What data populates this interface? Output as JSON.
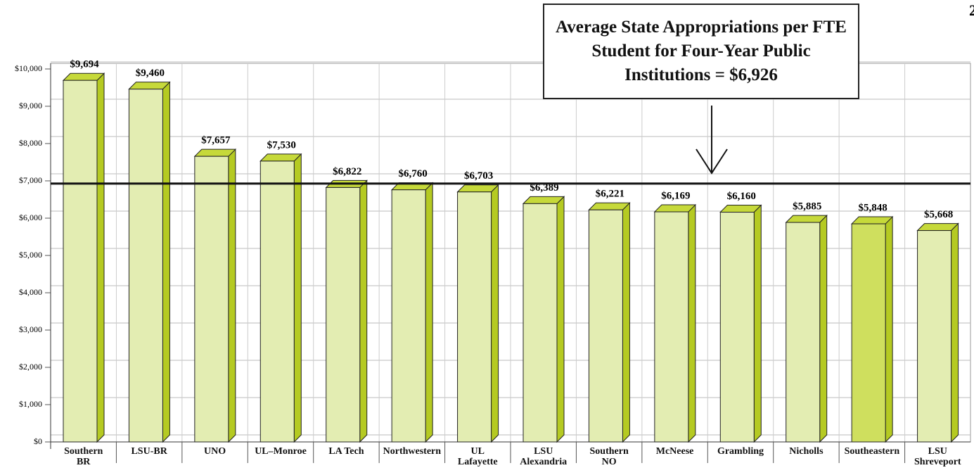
{
  "page_number": "2",
  "chart_data": {
    "type": "bar3d",
    "annotation": "Average State Appropriations per FTE Student for Four-Year Public Institutions = $6,926",
    "reference_value": 6926,
    "categories": [
      "Southern\nBR",
      "LSU-BR",
      "UNO",
      "UL–Monroe",
      "LA Tech",
      "Northwestern",
      "UL\nLafayette",
      "LSU\nAlexandria",
      "Southern\nNO",
      "McNeese",
      "Grambling",
      "Nicholls",
      "Southeastern",
      "LSU\nShreveport"
    ],
    "values": [
      9694,
      9460,
      7657,
      7530,
      6822,
      6760,
      6703,
      6389,
      6221,
      6169,
      6160,
      5885,
      5848,
      5668
    ],
    "value_labels": [
      "$9,694",
      "$9,460",
      "$7,657",
      "$7,530",
      "$6,822",
      "$6,760",
      "$6,703",
      "$6,389",
      "$6,221",
      "$6,169",
      "$6,160",
      "$5,885",
      "$5,848",
      "$5,668"
    ],
    "color": "#e3edb2",
    "highlight_index": 12,
    "highlight_color": "#cfdf5e",
    "ylim": [
      0,
      10000
    ],
    "yticks": [
      {
        "value": 0,
        "label": "$0"
      },
      {
        "value": 1000,
        "label": "$1,000"
      },
      {
        "value": 2000,
        "label": "$2,000"
      },
      {
        "value": 3000,
        "label": "$3,000"
      },
      {
        "value": 4000,
        "label": "$4,000"
      },
      {
        "value": 5000,
        "label": "$5,000"
      },
      {
        "value": 6000,
        "label": "$6,000"
      },
      {
        "value": 7000,
        "label": "$7,000"
      },
      {
        "value": 8000,
        "label": "$8,000"
      },
      {
        "value": 9000,
        "label": "$9,000"
      },
      {
        "value": 10000,
        "label": "$10,000"
      }
    ],
    "grid": true
  }
}
